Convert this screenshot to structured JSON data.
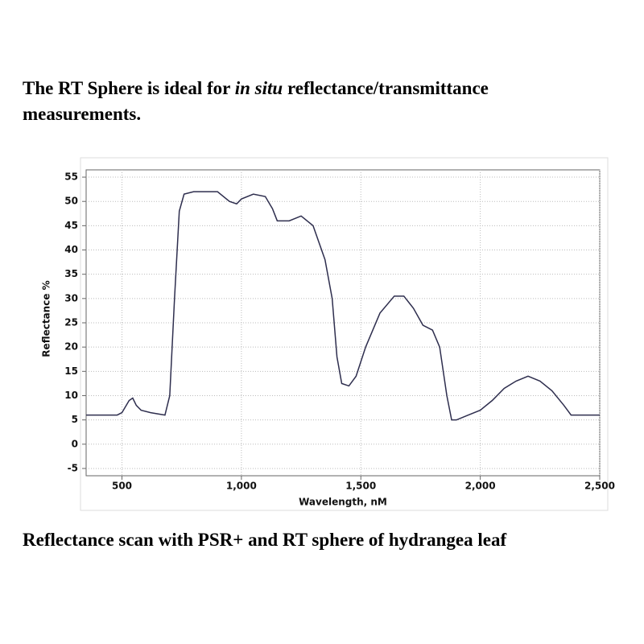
{
  "heading": [
    "The RT Sphere is ideal for ",
    "in situ",
    " reflectance/transmittance measurements."
  ],
  "caption": "Reflectance scan with PSR+ and RT sphere of hydrangea leaf",
  "chart_data": {
    "type": "line",
    "x_label": "Wavelength, nM",
    "y_label": "Reflectance %",
    "xlim": [
      350,
      2500
    ],
    "ylim": [
      -6.5,
      56.5
    ],
    "xticks": [
      {
        "value": 500,
        "label": "500"
      },
      {
        "value": 1000,
        "label": "1,000"
      },
      {
        "value": 1500,
        "label": "1,500"
      },
      {
        "value": 2000,
        "label": "2,000"
      },
      {
        "value": 2500,
        "label": "2,500"
      }
    ],
    "yticks": [
      -5,
      0,
      5,
      10,
      15,
      20,
      25,
      30,
      35,
      40,
      45,
      50,
      55
    ],
    "grid": true,
    "x": [
      350,
      480,
      500,
      530,
      545,
      560,
      580,
      620,
      680,
      700,
      720,
      740,
      760,
      800,
      900,
      950,
      980,
      1000,
      1050,
      1100,
      1130,
      1150,
      1200,
      1250,
      1300,
      1350,
      1380,
      1400,
      1420,
      1450,
      1480,
      1520,
      1580,
      1640,
      1680,
      1720,
      1760,
      1800,
      1830,
      1860,
      1880,
      1900,
      1950,
      2000,
      2050,
      2100,
      2150,
      2200,
      2250,
      2300,
      2350,
      2380,
      2500
    ],
    "series": [
      {
        "color": "#2e2e4e",
        "values": [
          6,
          6,
          6.5,
          9,
          9.5,
          8,
          7,
          6.5,
          6,
          10,
          30,
          48,
          51.5,
          52,
          52,
          50,
          49.5,
          50.5,
          51.5,
          51,
          48.5,
          46,
          46,
          47,
          45,
          38,
          30,
          18,
          12.5,
          12,
          14,
          20,
          27,
          30.5,
          30.5,
          28,
          24.5,
          23.5,
          20,
          10,
          5,
          5,
          6,
          7,
          9,
          11.5,
          13,
          14,
          13,
          11,
          8,
          6,
          6
        ]
      }
    ]
  }
}
